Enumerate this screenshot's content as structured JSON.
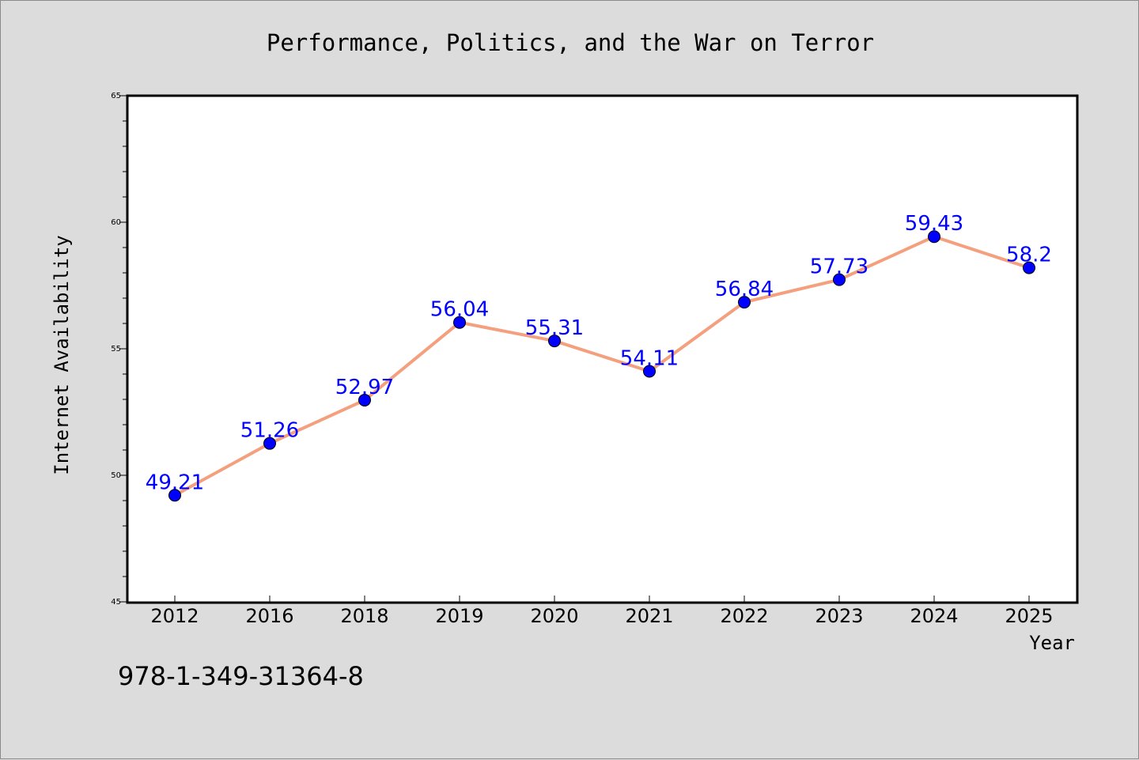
{
  "chart_data": {
    "type": "line",
    "title": "Performance, Politics, and the War on Terror",
    "xlabel": "Year",
    "ylabel": "Internet Availability",
    "categories": [
      "2012",
      "2016",
      "2018",
      "2019",
      "2020",
      "2021",
      "2022",
      "2023",
      "2024",
      "2025"
    ],
    "values": [
      49.21,
      51.26,
      52.97,
      56.04,
      55.31,
      54.11,
      56.84,
      57.73,
      59.43,
      58.2
    ],
    "data_labels": [
      "49.21",
      "51.26",
      "52.97",
      "56.04",
      "55.31",
      "54.11",
      "56.84",
      "57.73",
      "59.43",
      "58.2"
    ],
    "ylim": [
      45,
      65
    ],
    "yticks": [
      "45",
      "50",
      "55",
      "60",
      "65"
    ],
    "grid": false,
    "legend": "none",
    "colors": {
      "line": "#f4a07f",
      "marker": "#0000ff",
      "label": "#0000ff",
      "background": "#dcdcdc",
      "plot_area": "#ffffff"
    }
  },
  "footer": {
    "isbn": "978-1-349-31364-8"
  }
}
